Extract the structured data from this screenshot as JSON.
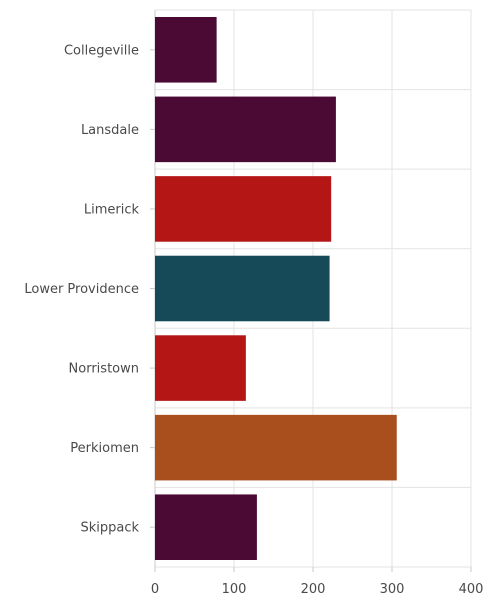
{
  "chart_data": {
    "type": "bar",
    "orientation": "horizontal",
    "categories": [
      "Collegeville",
      "Lansdale",
      "Limerick",
      "Lower Providence",
      "Norristown",
      "Perkiomen",
      "Skippack"
    ],
    "values": [
      78,
      229,
      223,
      221,
      115,
      306,
      129
    ],
    "colors": [
      "#4a0a33",
      "#4a0a33",
      "#b41616",
      "#164a58",
      "#b41616",
      "#a84f1d",
      "#4a0a33"
    ],
    "xlim": [
      0,
      400
    ],
    "xticks": [
      0,
      100,
      200,
      300,
      400
    ],
    "grid": true,
    "legend": "none"
  }
}
